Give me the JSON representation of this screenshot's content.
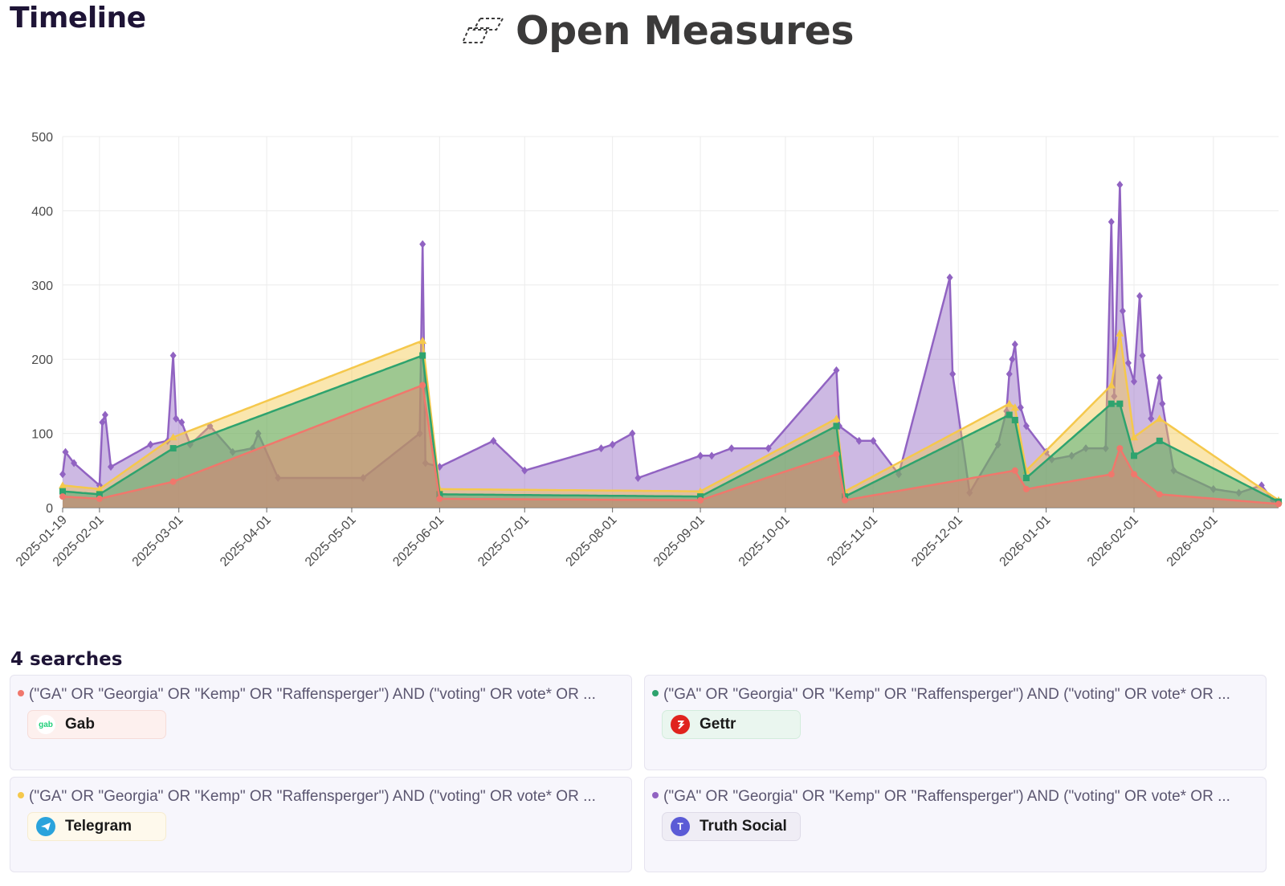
{
  "header": {
    "title": "Timeline",
    "brand": "Open Measures",
    "brand_icon": "open-measures-logo-icon"
  },
  "chart_data": {
    "type": "area",
    "title": "",
    "xlabel": "",
    "ylabel": "",
    "x_ticks": [
      "2025-01-19",
      "2025-02-01",
      "2025-03-01",
      "2025-04-01",
      "2025-05-01",
      "2025-06-01",
      "2025-07-01",
      "2025-08-01",
      "2025-09-01",
      "2025-10-01",
      "2025-11-01",
      "2025-12-01",
      "2026-01-01",
      "2026-02-01",
      "2026-03-01"
    ],
    "x_range": [
      "2025-01-19",
      "2026-03-24"
    ],
    "ylim": [
      0,
      500
    ],
    "y_ticks": [
      "0",
      "100",
      "200",
      "300",
      "400",
      "500"
    ],
    "grid": true,
    "stacked": true,
    "series": [
      {
        "name": "Gab",
        "color": "#f0776c",
        "marker": "circle",
        "points": [
          [
            "2025-01-19",
            15
          ],
          [
            "2025-02-01",
            12
          ],
          [
            "2025-02-27",
            35
          ],
          [
            "2025-05-26",
            165
          ],
          [
            "2025-06-01",
            12
          ],
          [
            "2025-09-01",
            10
          ],
          [
            "2025-10-19",
            72
          ],
          [
            "2025-10-22",
            10
          ],
          [
            "2025-12-21",
            50
          ],
          [
            "2025-12-25",
            25
          ],
          [
            "2026-01-24",
            45
          ],
          [
            "2026-01-27",
            80
          ],
          [
            "2026-02-01",
            45
          ],
          [
            "2026-02-10",
            18
          ],
          [
            "2026-03-24",
            5
          ]
        ]
      },
      {
        "name": "Gettr",
        "color": "#2ea36e",
        "marker": "square",
        "points": [
          [
            "2025-01-19",
            22
          ],
          [
            "2025-02-01",
            18
          ],
          [
            "2025-02-27",
            80
          ],
          [
            "2025-05-26",
            205
          ],
          [
            "2025-06-01",
            18
          ],
          [
            "2025-09-01",
            15
          ],
          [
            "2025-10-19",
            110
          ],
          [
            "2025-10-22",
            15
          ],
          [
            "2025-12-19",
            125
          ],
          [
            "2025-12-21",
            118
          ],
          [
            "2025-12-25",
            40
          ],
          [
            "2026-01-24",
            140
          ],
          [
            "2026-01-27",
            140
          ],
          [
            "2026-02-01",
            70
          ],
          [
            "2026-02-10",
            90
          ],
          [
            "2026-03-24",
            8
          ]
        ]
      },
      {
        "name": "Telegram",
        "color": "#f5c84c",
        "marker": "triangle",
        "points": [
          [
            "2025-01-19",
            30
          ],
          [
            "2025-02-01",
            25
          ],
          [
            "2025-02-27",
            95
          ],
          [
            "2025-05-26",
            225
          ],
          [
            "2025-06-01",
            25
          ],
          [
            "2025-09-01",
            22
          ],
          [
            "2025-10-19",
            120
          ],
          [
            "2025-10-22",
            22
          ],
          [
            "2025-12-19",
            140
          ],
          [
            "2025-12-21",
            135
          ],
          [
            "2025-12-25",
            50
          ],
          [
            "2026-01-24",
            165
          ],
          [
            "2026-01-27",
            235
          ],
          [
            "2026-02-01",
            95
          ],
          [
            "2026-02-10",
            120
          ],
          [
            "2026-03-24",
            10
          ]
        ]
      },
      {
        "name": "Truth Social",
        "color": "#9163c2",
        "marker": "diamond",
        "points": [
          [
            "2025-01-19",
            45
          ],
          [
            "2025-01-20",
            75
          ],
          [
            "2025-01-23",
            60
          ],
          [
            "2025-02-01",
            30
          ],
          [
            "2025-02-02",
            115
          ],
          [
            "2025-02-03",
            125
          ],
          [
            "2025-02-05",
            55
          ],
          [
            "2025-02-19",
            85
          ],
          [
            "2025-02-25",
            90
          ],
          [
            "2025-02-27",
            205
          ],
          [
            "2025-02-28",
            120
          ],
          [
            "2025-03-02",
            115
          ],
          [
            "2025-03-05",
            85
          ],
          [
            "2025-03-12",
            110
          ],
          [
            "2025-03-20",
            75
          ],
          [
            "2025-03-27",
            80
          ],
          [
            "2025-03-29",
            100
          ],
          [
            "2025-04-05",
            40
          ],
          [
            "2025-05-05",
            40
          ],
          [
            "2025-05-25",
            100
          ],
          [
            "2025-05-26",
            355
          ],
          [
            "2025-05-27",
            60
          ],
          [
            "2025-06-01",
            55
          ],
          [
            "2025-06-20",
            90
          ],
          [
            "2025-07-01",
            50
          ],
          [
            "2025-07-28",
            80
          ],
          [
            "2025-08-01",
            85
          ],
          [
            "2025-08-08",
            100
          ],
          [
            "2025-08-10",
            40
          ],
          [
            "2025-09-01",
            70
          ],
          [
            "2025-09-05",
            70
          ],
          [
            "2025-09-12",
            80
          ],
          [
            "2025-09-25",
            80
          ],
          [
            "2025-10-19",
            185
          ],
          [
            "2025-10-20",
            110
          ],
          [
            "2025-10-27",
            90
          ],
          [
            "2025-11-01",
            90
          ],
          [
            "2025-11-10",
            45
          ],
          [
            "2025-11-28",
            310
          ],
          [
            "2025-11-29",
            180
          ],
          [
            "2025-12-05",
            20
          ],
          [
            "2025-12-15",
            85
          ],
          [
            "2025-12-18",
            130
          ],
          [
            "2025-12-19",
            180
          ],
          [
            "2025-12-20",
            200
          ],
          [
            "2025-12-21",
            220
          ],
          [
            "2025-12-23",
            135
          ],
          [
            "2025-12-25",
            110
          ],
          [
            "2026-01-01",
            75
          ],
          [
            "2026-01-03",
            65
          ],
          [
            "2026-01-10",
            70
          ],
          [
            "2026-01-15",
            80
          ],
          [
            "2026-01-22",
            80
          ],
          [
            "2026-01-24",
            385
          ],
          [
            "2026-01-25",
            150
          ],
          [
            "2026-01-27",
            435
          ],
          [
            "2026-01-28",
            265
          ],
          [
            "2026-01-30",
            195
          ],
          [
            "2026-02-01",
            170
          ],
          [
            "2026-02-03",
            285
          ],
          [
            "2026-02-04",
            205
          ],
          [
            "2026-02-07",
            120
          ],
          [
            "2026-02-10",
            175
          ],
          [
            "2026-02-11",
            140
          ],
          [
            "2026-02-15",
            50
          ],
          [
            "2026-03-01",
            25
          ],
          [
            "2026-03-10",
            20
          ],
          [
            "2026-03-18",
            30
          ],
          [
            "2026-03-22",
            10
          ],
          [
            "2026-03-24",
            8
          ]
        ]
      }
    ]
  },
  "searches": {
    "count_label": "4 searches",
    "cards": [
      {
        "query": "(\"GA\" OR \"Georgia\" OR \"Kemp\" OR \"Raffensperger\") AND (\"voting\" OR vote* OR ...",
        "platform": "Gab",
        "color": "#f0776c",
        "chip_bg": "#fdf0ee",
        "chip_border": "#f6dcd8",
        "icon": "gab-icon",
        "icon_text": "gab",
        "icon_color": "#21cf7a",
        "icon_bg": "#ffffff"
      },
      {
        "query": "(\"GA\" OR \"Georgia\" OR \"Kemp\" OR \"Raffensperger\") AND (\"voting\" OR vote* OR ...",
        "platform": "Gettr",
        "color": "#2ea36e",
        "chip_bg": "#eaf6ef",
        "chip_border": "#d3ecdc",
        "icon": "gettr-icon",
        "icon_text": "ℊ",
        "icon_color": "#ffffff",
        "icon_bg": "#e0231e"
      },
      {
        "query": "(\"GA\" OR \"Georgia\" OR \"Kemp\" OR \"Raffensperger\") AND (\"voting\" OR vote* OR ...",
        "platform": "Telegram",
        "color": "#f5c84c",
        "chip_bg": "#fef9ec",
        "chip_border": "#f6ecd0",
        "icon": "telegram-icon",
        "icon_text": "➤",
        "icon_color": "#ffffff",
        "icon_bg": "#2aa3dc"
      },
      {
        "query": "(\"GA\" OR \"Georgia\" OR \"Kemp\" OR \"Raffensperger\") AND (\"voting\" OR vote* OR ...",
        "platform": "Truth Social",
        "color": "#9163c2",
        "chip_bg": "#efedf5",
        "chip_border": "#dedbe8",
        "icon": "truth-social-icon",
        "icon_text": "T",
        "icon_color": "#ffffff",
        "icon_bg": "#5b5bd6"
      }
    ]
  }
}
